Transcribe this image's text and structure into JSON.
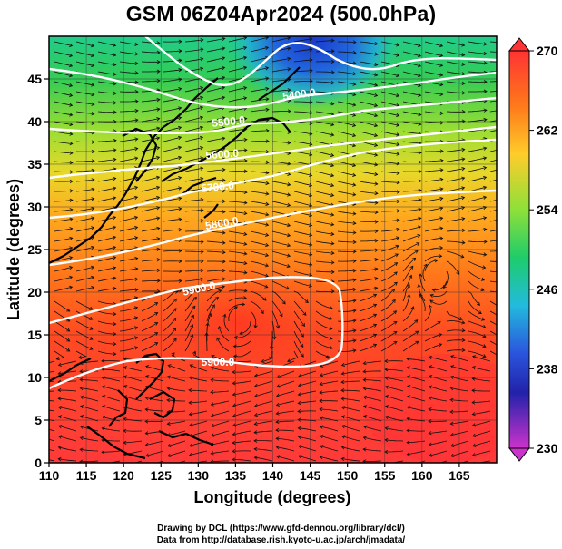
{
  "title": "GSM 06Z04Apr2024 (500.0hPa)",
  "x_axis": {
    "label": "Longitude (degrees)",
    "range": [
      110,
      170
    ],
    "ticks": [
      "110",
      "115",
      "120",
      "125",
      "130",
      "135",
      "140",
      "145",
      "150",
      "155",
      "160",
      "165"
    ]
  },
  "y_axis": {
    "label": "Latitude (degrees)",
    "range": [
      0,
      50
    ],
    "ticks": [
      "0",
      "5",
      "10",
      "15",
      "20",
      "25",
      "30",
      "35",
      "40",
      "45"
    ]
  },
  "colorbar": {
    "range": [
      230,
      270
    ],
    "tick_labels": [
      "270",
      "262",
      "254",
      "246",
      "238",
      "230"
    ],
    "colors": [
      "#ff3333",
      "#ff7a1a",
      "#ffcc2a",
      "#8ee03a",
      "#1ecc6a",
      "#22bbdd",
      "#2a55dd",
      "#2222aa",
      "#cc33cc"
    ]
  },
  "contour_labels": [
    {
      "text": "5400.0"
    },
    {
      "text": "5500.0"
    },
    {
      "text": "5600.0"
    },
    {
      "text": "5700.0"
    },
    {
      "text": "5800.0"
    },
    {
      "text": "5900.0"
    },
    {
      "text": "5900.0"
    }
  ],
  "credits": [
    "Drawing by DCL (https://www.gfd-dennou.org/library/dcl/)",
    "Data from http://database.rish.kyoto-u.ac.jp/arch/jmadata/"
  ]
}
